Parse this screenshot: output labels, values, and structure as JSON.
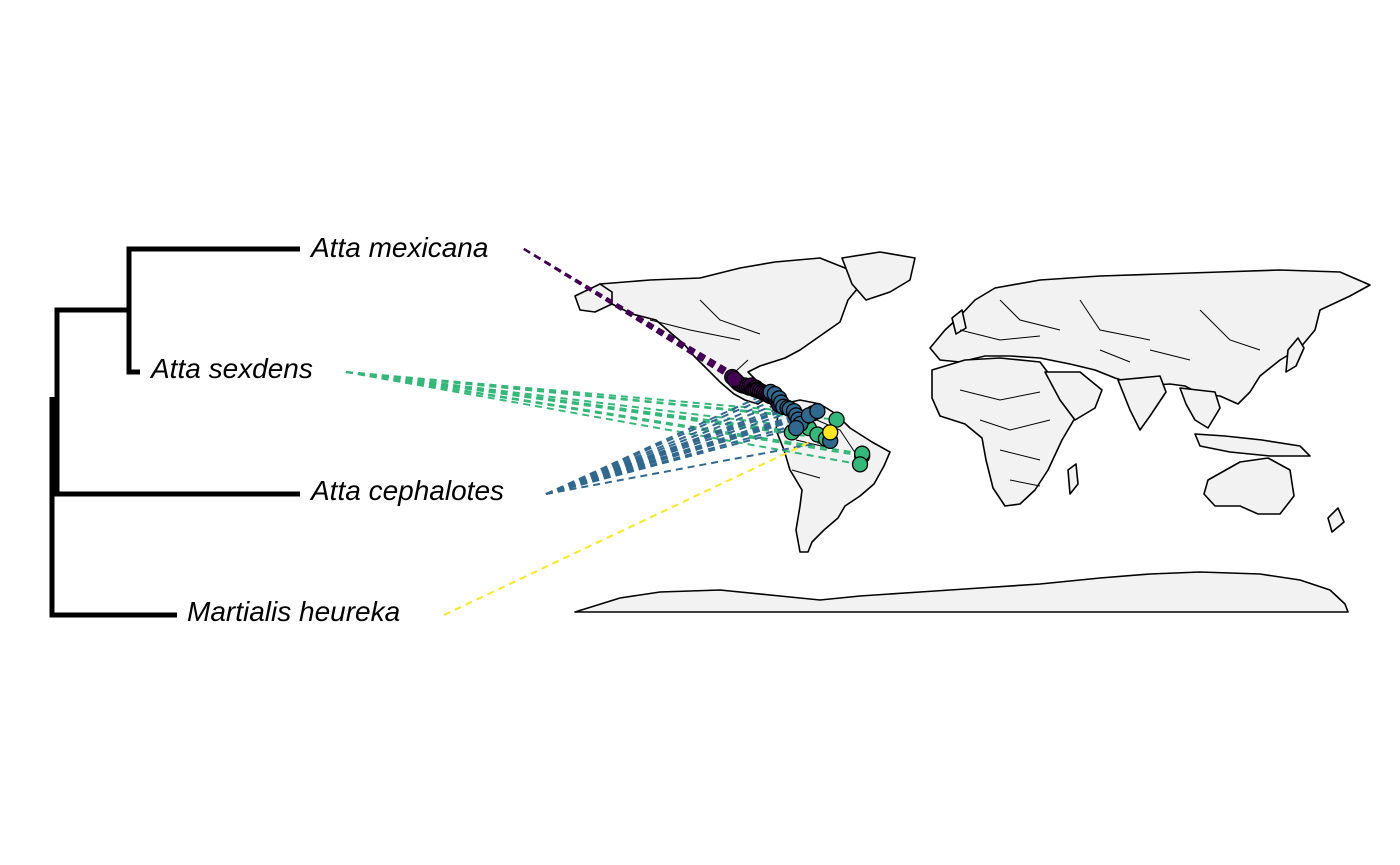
{
  "taxa": [
    {
      "key": "mexicana",
      "name": "Atta mexicana",
      "color": "#440154"
    },
    {
      "key": "sexdens",
      "name": "Atta sexdens",
      "color": "#35b779"
    },
    {
      "key": "cephalotes",
      "name": "Atta cephalotes",
      "color": "#31688e"
    },
    {
      "key": "heureka",
      "name": "Martialis heureka",
      "color": "#fde725"
    }
  ],
  "occurrences": {
    "mexicana": [
      [
        -104,
        21
      ],
      [
        -103,
        20
      ],
      [
        -102,
        19.5
      ],
      [
        -101,
        19
      ],
      [
        -100,
        19
      ],
      [
        -99,
        18.5
      ],
      [
        -98,
        18
      ],
      [
        -97,
        18
      ],
      [
        -97,
        19
      ],
      [
        -96,
        17.5
      ],
      [
        -95,
        18
      ],
      [
        -95,
        17
      ],
      [
        -94,
        17
      ],
      [
        -93,
        16.5
      ],
      [
        -92,
        16
      ],
      [
        -91,
        15.5
      ],
      [
        -90,
        15
      ],
      [
        -89,
        14.5
      ],
      [
        -88,
        14
      ],
      [
        -87,
        14
      ],
      [
        -86,
        13.5
      ],
      [
        -85,
        12
      ],
      [
        -84,
        10
      ],
      [
        -106,
        23
      ],
      [
        -105,
        22
      ]
    ],
    "cephalotes": [
      [
        -88,
        16
      ],
      [
        -86,
        15
      ],
      [
        -84,
        13
      ],
      [
        -83,
        11
      ],
      [
        -82,
        9
      ],
      [
        -80,
        8.5
      ],
      [
        -79,
        8
      ],
      [
        -77,
        7
      ],
      [
        -76,
        5
      ],
      [
        -75,
        3
      ],
      [
        -74,
        1
      ],
      [
        -70,
        5
      ],
      [
        -66,
        7
      ],
      [
        -76,
        -1
      ],
      [
        -60,
        -7
      ]
    ],
    "sexdens": [
      [
        -68,
        6
      ],
      [
        -70,
        -1
      ],
      [
        -66,
        -4
      ],
      [
        -57,
        3
      ],
      [
        -62,
        -6
      ],
      [
        -45,
        -14
      ],
      [
        -45,
        -13
      ],
      [
        -46,
        -18
      ],
      [
        -72,
        4
      ],
      [
        -78,
        -3
      ]
    ],
    "heureka": [
      [
        -60,
        -3
      ]
    ]
  },
  "colors": {
    "land": "#f2f2f2",
    "outline": "#000000"
  }
}
